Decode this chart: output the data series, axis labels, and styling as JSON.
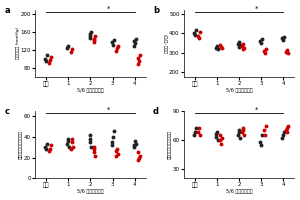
{
  "panels": [
    {
      "label": "a",
      "ylabel": "平均動脈圧 (mmHg)",
      "xlabel": "5/6 腎摘術後週数",
      "ylim": [
        60,
        210
      ],
      "yticks": [
        80,
        120,
        160,
        200
      ],
      "xticklabels": [
        "術前",
        "1",
        "2",
        "3",
        "4"
      ],
      "black_data": [
        [
          100,
          95,
          108
        ],
        [
          125,
          130
        ],
        [
          155,
          148,
          160,
          152
        ],
        [
          138,
          132,
          142
        ],
        [
          140,
          135,
          145,
          130
        ]
      ],
      "red_data": [
        [
          92,
          98,
          105
        ],
        [
          115,
          122
        ],
        [
          145,
          138,
          152,
          142
        ],
        [
          118,
          125,
          130
        ],
        [
          88,
          95,
          110,
          102
        ]
      ],
      "sig_line": true
    },
    {
      "label": "b",
      "ylabel": "心拍数 (回/分)",
      "xlabel": "5/6 腎摘術後週数",
      "ylim": [
        175,
        520
      ],
      "yticks": [
        200,
        300,
        400,
        500
      ],
      "xticklabels": [
        "術前",
        "1",
        "2",
        "3",
        "4"
      ],
      "black_data": [
        [
          400,
          390,
          415
        ],
        [
          325,
          332,
          318
        ],
        [
          345,
          355,
          338,
          330
        ],
        [
          360,
          350,
          370
        ],
        [
          375,
          365,
          382
        ]
      ],
      "red_data": [
        [
          385,
          375,
          408
        ],
        [
          340,
          330,
          322
        ],
        [
          335,
          345,
          325,
          318
        ],
        [
          310,
          300,
          320
        ],
        [
          305,
          315,
          298
        ]
      ],
      "sig_line": true
    },
    {
      "label": "c",
      "ylabel": "又腎皮質球状帯活動指數",
      "xlabel": "5/6 腎摘術後週数",
      "ylim": [
        0,
        65
      ],
      "yticks": [
        0,
        20,
        40,
        60
      ],
      "xticklabels": [
        "術前",
        "1",
        "2",
        "3",
        "4"
      ],
      "black_data": [
        [
          30,
          28,
          33
        ],
        [
          33,
          38,
          30,
          36
        ],
        [
          35,
          42,
          30,
          38
        ],
        [
          35,
          40,
          46,
          32
        ],
        [
          30,
          36,
          33,
          32
        ]
      ],
      "red_data": [
        [
          26,
          28,
          32
        ],
        [
          28,
          35,
          30,
          38
        ],
        [
          25,
          30,
          22,
          28
        ],
        [
          22,
          28,
          24,
          26
        ],
        [
          18,
          20,
          22,
          25
        ]
      ],
      "sig_line": true
    },
    {
      "label": "d",
      "ylabel": "副腎皮質球状帯活動指數",
      "xlabel": "5/6 腎摘術後週数",
      "ylim": [
        20,
        90
      ],
      "yticks": [
        30,
        60,
        90
      ],
      "xticklabels": [
        "術前",
        "1",
        "2",
        "3",
        "4"
      ],
      "black_data": [
        [
          65,
          68,
          72
        ],
        [
          63,
          68,
          60,
          66
        ],
        [
          65,
          70,
          62,
          68
        ],
        [
          58,
          55,
          65
        ],
        [
          62,
          65,
          68
        ]
      ],
      "red_data": [
        [
          68,
          72,
          65
        ],
        [
          60,
          56,
          62,
          65
        ],
        [
          68,
          72,
          65,
          70
        ],
        [
          70,
          65,
          75
        ],
        [
          70,
          68,
          75,
          72
        ]
      ],
      "sig_line": true
    }
  ],
  "black_color": "#222222",
  "red_color": "#cc0000",
  "marker_size": 2.8,
  "sig_star": "*",
  "fig_bgcolor": "#ffffff"
}
